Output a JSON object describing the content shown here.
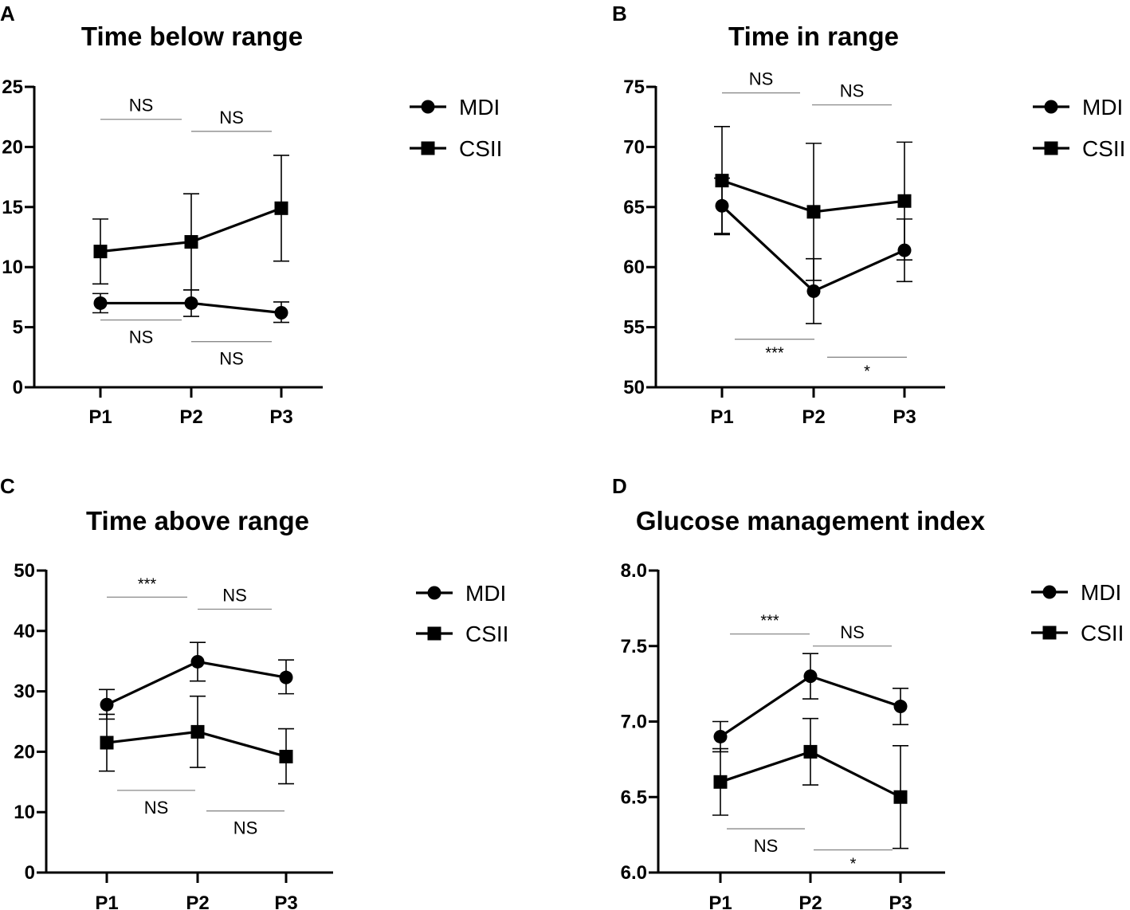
{
  "chart_data": [
    {
      "panel": "A",
      "type": "line",
      "title": "Time below range",
      "categories": [
        "P1",
        "P2",
        "P3"
      ],
      "ylim": [
        0,
        25
      ],
      "yticks": [
        0,
        5,
        10,
        15,
        20,
        25
      ],
      "series": [
        {
          "name": "MDI",
          "marker": "circle",
          "values": [
            7.0,
            7.0,
            6.2
          ],
          "upper": [
            7.8,
            8.1,
            7.1
          ],
          "lower": [
            6.2,
            5.9,
            5.4
          ]
        },
        {
          "name": "CSII",
          "marker": "square",
          "values": [
            11.3,
            12.1,
            14.9
          ],
          "upper": [
            14.0,
            16.1,
            19.3
          ],
          "lower": [
            8.6,
            8.1,
            10.5
          ]
        }
      ],
      "comparisons": [
        {
          "from": 0,
          "to": 1,
          "label": "NS",
          "group": "CSII",
          "level": 22.3
        },
        {
          "from": 1,
          "to": 2,
          "label": "NS",
          "group": "CSII",
          "level": 21.3
        },
        {
          "from": 0,
          "to": 1,
          "label": "NS",
          "group": "MDI",
          "level": 5.6
        },
        {
          "from": 1,
          "to": 2,
          "label": "NS",
          "group": "MDI",
          "level": 3.8
        }
      ]
    },
    {
      "panel": "B",
      "type": "line",
      "title": "Time in range",
      "categories": [
        "P1",
        "P2",
        "P3"
      ],
      "ylim": [
        50,
        75
      ],
      "yticks": [
        50,
        55,
        60,
        65,
        70,
        75
      ],
      "series": [
        {
          "name": "MDI",
          "marker": "circle",
          "values": [
            65.1,
            58.0,
            61.4
          ],
          "upper": [
            67.4,
            60.7,
            64.0
          ],
          "lower": [
            62.8,
            55.3,
            58.8
          ]
        },
        {
          "name": "CSII",
          "marker": "square",
          "values": [
            67.2,
            64.6,
            65.5
          ],
          "upper": [
            71.7,
            70.3,
            70.4
          ],
          "lower": [
            62.7,
            58.9,
            60.6
          ]
        }
      ],
      "comparisons": [
        {
          "from": 0,
          "to": 1,
          "label": "NS",
          "group": "CSII",
          "level": 74.5
        },
        {
          "from": 1,
          "to": 2,
          "label": "NS",
          "group": "CSII",
          "level": 73.5
        },
        {
          "from": 0,
          "to": 1,
          "label": "***",
          "group": "MDI",
          "level": 54.0
        },
        {
          "from": 1,
          "to": 2,
          "label": "*",
          "group": "MDI",
          "level": 52.5
        }
      ]
    },
    {
      "panel": "C",
      "type": "line",
      "title": "Time above range",
      "categories": [
        "P1",
        "P2",
        "P3"
      ],
      "ylim": [
        0,
        50
      ],
      "yticks": [
        0,
        10,
        20,
        30,
        40,
        50
      ],
      "series": [
        {
          "name": "MDI",
          "marker": "circle",
          "values": [
            27.8,
            34.9,
            32.3
          ],
          "upper": [
            30.3,
            38.1,
            35.2
          ],
          "lower": [
            25.4,
            31.7,
            29.6
          ]
        },
        {
          "name": "CSII",
          "marker": "square",
          "values": [
            21.5,
            23.3,
            19.2
          ],
          "upper": [
            26.2,
            29.2,
            23.8
          ],
          "lower": [
            16.8,
            17.4,
            14.7
          ]
        }
      ],
      "comparisons": [
        {
          "from": 0,
          "to": 1,
          "label": "***",
          "group": "MDI",
          "level": 45.6
        },
        {
          "from": 1,
          "to": 2,
          "label": "NS",
          "group": "MDI",
          "level": 43.6
        },
        {
          "from": 0,
          "to": 1,
          "label": "NS",
          "group": "CSII",
          "level": 13.6
        },
        {
          "from": 1,
          "to": 2,
          "label": "NS",
          "group": "CSII",
          "level": 10.2
        }
      ]
    },
    {
      "panel": "D",
      "type": "line",
      "title": "Glucose management index",
      "categories": [
        "P1",
        "P2",
        "P3"
      ],
      "ylim": [
        6.0,
        8.0
      ],
      "yticks": [
        "6.0",
        "6.5",
        "7.0",
        "7.5",
        "8.0"
      ],
      "series": [
        {
          "name": "MDI",
          "marker": "circle",
          "values": [
            6.9,
            7.3,
            7.1
          ],
          "upper": [
            7.0,
            7.45,
            7.22
          ],
          "lower": [
            6.8,
            7.15,
            6.98
          ]
        },
        {
          "name": "CSII",
          "marker": "square",
          "values": [
            6.6,
            6.8,
            6.5
          ],
          "upper": [
            6.82,
            7.02,
            6.84
          ],
          "lower": [
            6.38,
            6.58,
            6.16
          ]
        }
      ],
      "comparisons": [
        {
          "from": 0,
          "to": 1,
          "label": "***",
          "group": "MDI",
          "level": 7.58
        },
        {
          "from": 1,
          "to": 2,
          "label": "NS",
          "group": "MDI",
          "level": 7.5
        },
        {
          "from": 0,
          "to": 1,
          "label": "NS",
          "group": "CSII",
          "level": 6.29
        },
        {
          "from": 1,
          "to": 2,
          "label": "*",
          "group": "CSII",
          "level": 6.15
        }
      ]
    }
  ]
}
